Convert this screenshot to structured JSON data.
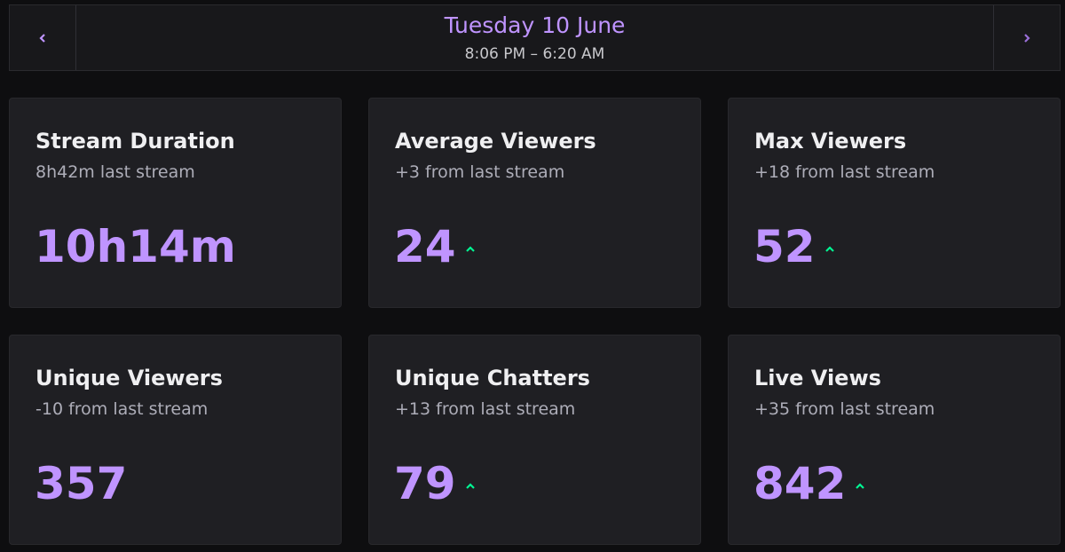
{
  "header": {
    "title": "Tuesday 10 June",
    "subtitle": "8:06 PM – 6:20 AM"
  },
  "stats": [
    {
      "title": "Stream Duration",
      "comparison": "8h42m last stream",
      "value": "10h14m"
    },
    {
      "title": "Average Viewers",
      "comparison": "+3 from last stream",
      "value": 24
    },
    {
      "title": "Max Viewers",
      "comparison": "+18 from last stream",
      "value": 52
    },
    {
      "title": "Unique Viewers",
      "comparison": "-10 from last stream",
      "value": 357
    },
    {
      "title": "Unique Chatters",
      "comparison": "+13 from last stream",
      "value": 79
    },
    {
      "title": "Live Views",
      "comparison": "+35 from last stream",
      "value": 842
    }
  ]
}
